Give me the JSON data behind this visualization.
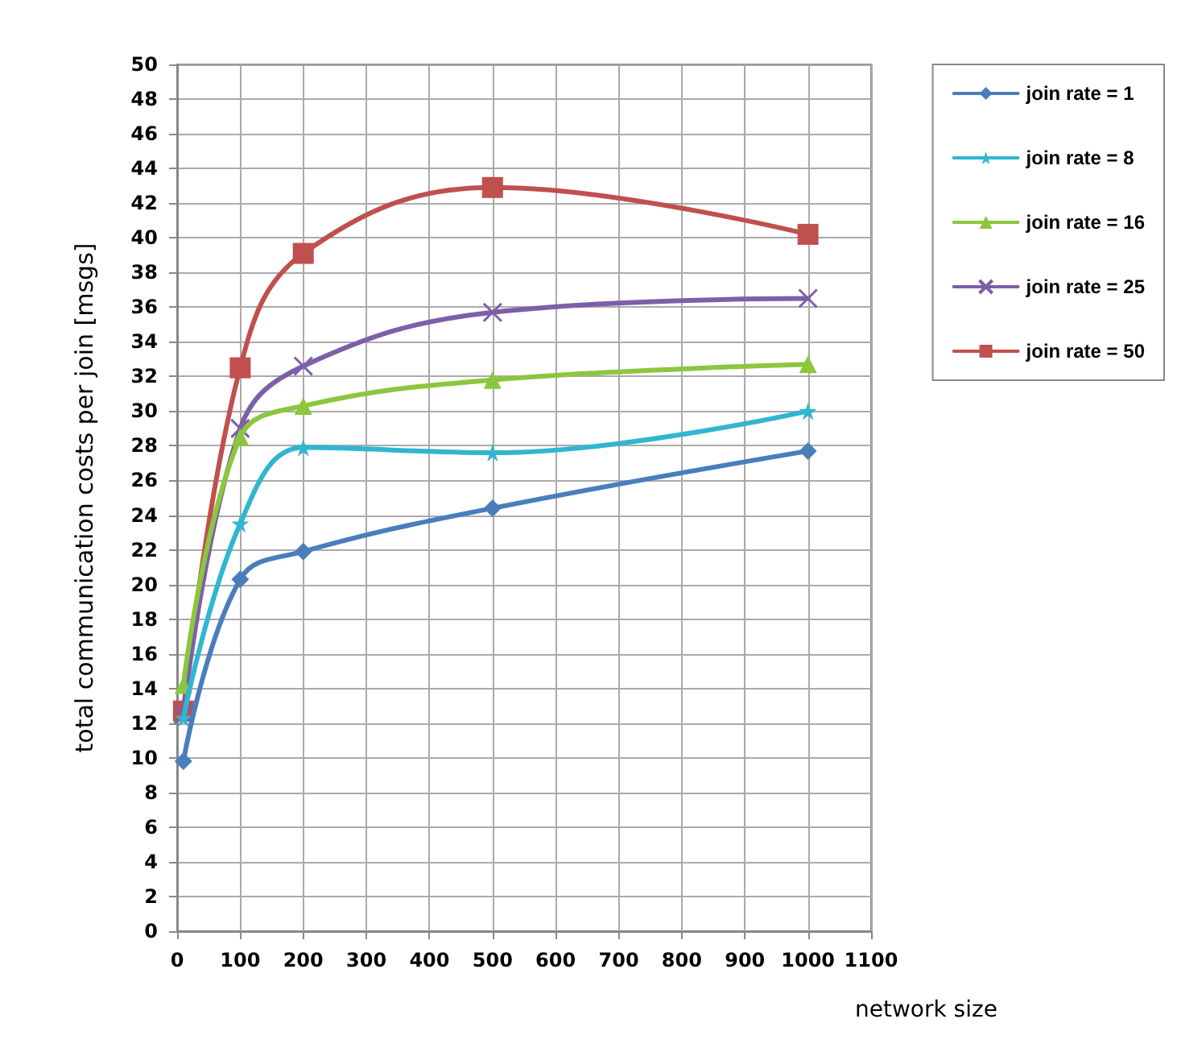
{
  "chart_data": {
    "type": "line",
    "xlabel": "network size",
    "ylabel": "total communication costs per join [msgs]",
    "x": [
      10,
      100,
      200,
      500,
      1000
    ],
    "series": [
      {
        "name": "join rate = 1",
        "color": "#4a7ebb",
        "marker": "diamond",
        "values": [
          9.8,
          20.3,
          21.9,
          24.4,
          27.7
        ]
      },
      {
        "name": "join rate = 8",
        "color": "#31b6d0",
        "marker": "star",
        "values": [
          12.3,
          23.5,
          27.9,
          27.6,
          30.0
        ]
      },
      {
        "name": "join rate = 16",
        "color": "#8cc63e",
        "marker": "triangle",
        "values": [
          14.2,
          28.5,
          30.3,
          31.8,
          32.7
        ]
      },
      {
        "name": "join rate = 25",
        "color": "#7d5fa8",
        "marker": "cross",
        "values": [
          12.5,
          29.0,
          32.6,
          35.7,
          36.5
        ]
      },
      {
        "name": "join rate = 50",
        "color": "#c0504d",
        "marker": "square",
        "values": [
          12.7,
          32.5,
          39.1,
          42.9,
          40.2
        ]
      }
    ],
    "xlim": [
      0,
      1100
    ],
    "xticks": [
      0,
      100,
      200,
      300,
      400,
      500,
      600,
      700,
      800,
      900,
      1000,
      1100
    ],
    "ylim": [
      0,
      50
    ],
    "yticks": [
      0,
      2,
      4,
      6,
      8,
      10,
      12,
      14,
      16,
      18,
      20,
      22,
      24,
      26,
      28,
      30,
      32,
      34,
      36,
      38,
      40,
      42,
      44,
      46,
      48,
      50
    ],
    "grid": true,
    "legend": "right",
    "line_style": "solid"
  }
}
